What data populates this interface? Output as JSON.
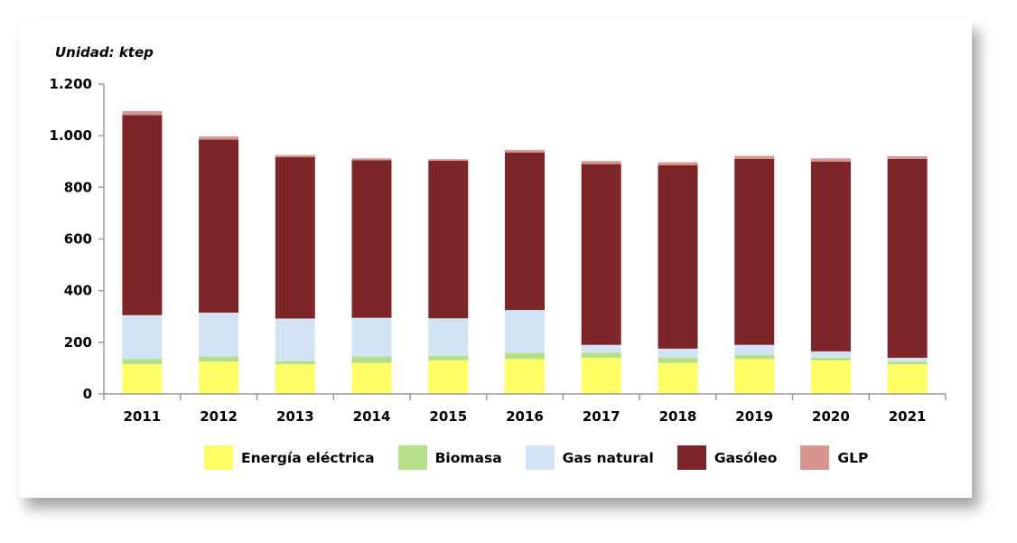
{
  "chart_data": {
    "type": "bar",
    "stacked": true,
    "unit_label": "Unidad: ktep",
    "categories": [
      "2011",
      "2012",
      "2013",
      "2014",
      "2015",
      "2016",
      "2017",
      "2018",
      "2019",
      "2020",
      "2021"
    ],
    "ylim": [
      0,
      1200
    ],
    "yticks": [
      0,
      200,
      400,
      600,
      800,
      1000,
      1200
    ],
    "ytick_labels": [
      "0",
      "200",
      "400",
      "600",
      "800",
      "1.000",
      "1.200"
    ],
    "series": [
      {
        "name": "Energía eléctrica",
        "color": "#ffff66",
        "values": [
          115,
          125,
          115,
          120,
          130,
          135,
          140,
          120,
          135,
          130,
          115
        ]
      },
      {
        "name": "Biomasa",
        "color": "#b5df8a",
        "values": [
          20,
          20,
          12,
          25,
          18,
          25,
          20,
          20,
          15,
          10,
          10
        ]
      },
      {
        "name": "Gas natural",
        "color": "#d2e3f4",
        "values": [
          170,
          170,
          165,
          150,
          145,
          165,
          30,
          35,
          40,
          25,
          15
        ]
      },
      {
        "name": "Gasóleo",
        "color": "#7c2629",
        "values": [
          775,
          670,
          625,
          610,
          610,
          610,
          700,
          710,
          720,
          735,
          770
        ]
      },
      {
        "name": "GLP",
        "color": "#d79592",
        "values": [
          15,
          12,
          8,
          7,
          6,
          10,
          12,
          12,
          12,
          12,
          10
        ]
      }
    ]
  }
}
